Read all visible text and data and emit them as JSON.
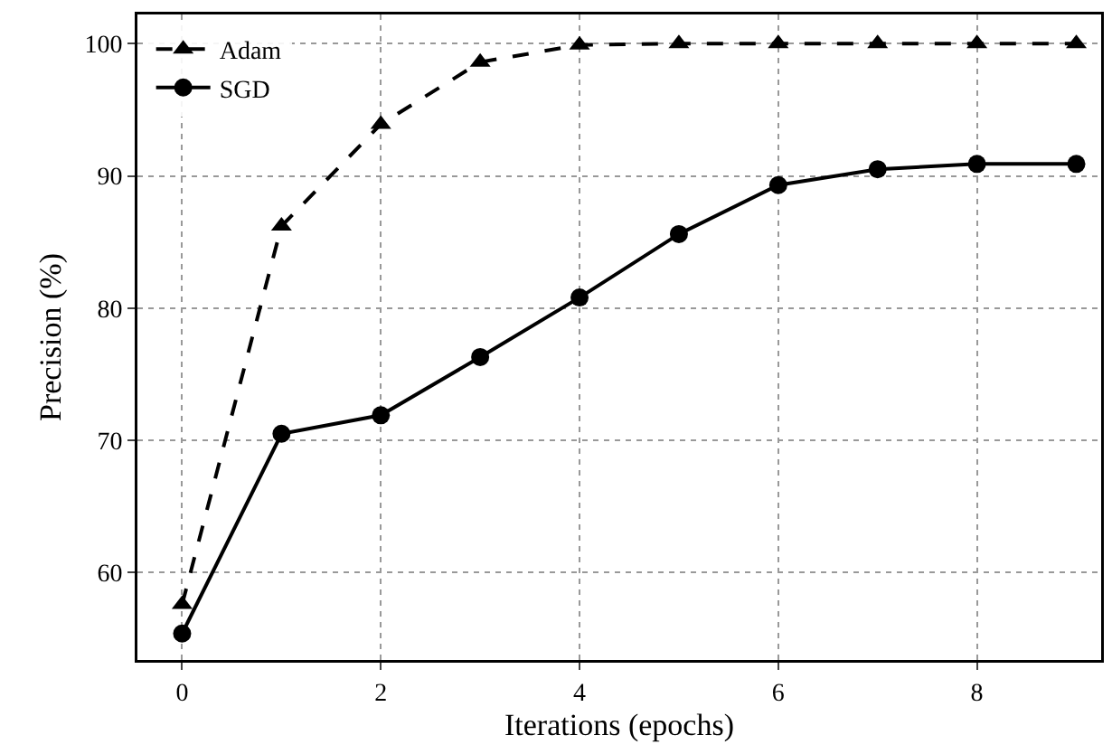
{
  "chart_data": {
    "type": "line",
    "xlabel": "Iterations (epochs)",
    "ylabel": "Precision (%)",
    "x": [
      0,
      1,
      2,
      3,
      4,
      5,
      6,
      7,
      8,
      9
    ],
    "series": [
      {
        "name": "Adam",
        "color": "#000000",
        "marker": "triangle",
        "line_style": "dashed",
        "values": [
          57.6,
          86.2,
          93.9,
          98.6,
          99.9,
          100,
          100,
          100,
          100,
          100
        ]
      },
      {
        "name": "SGD",
        "color": "#000000",
        "marker": "circle",
        "line_style": "solid",
        "values": [
          55.4,
          70.5,
          71.9,
          76.3,
          80.8,
          85.6,
          89.3,
          90.5,
          90.9,
          90.9
        ]
      }
    ],
    "xlim": [
      -0.45,
      9.25
    ],
    "xticks": [
      0,
      2,
      4,
      6,
      8
    ],
    "ylim": [
      53.4,
      102.2
    ],
    "yticks": [
      60,
      70,
      80,
      90,
      100
    ],
    "grid": true,
    "legend": "top left"
  }
}
